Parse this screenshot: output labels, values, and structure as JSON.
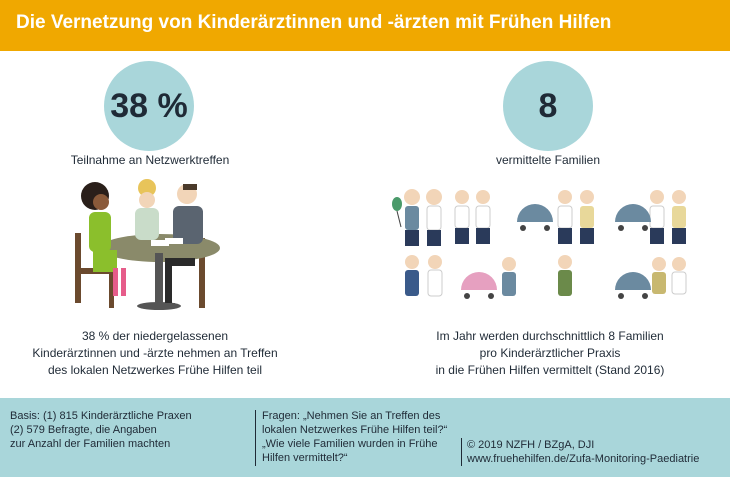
{
  "header": {
    "title": "Die Vernetzung von Kinderärztinnen und -ärzten mit Frühen Hilfen"
  },
  "left": {
    "stat": "38 %",
    "caption": "Teilnahme an Netzwerktreffen",
    "description": [
      "38 % der niedergelassenen",
      "Kinderärztinnen und -ärzte nehmen an Treffen",
      "des lokalen Netzwerkes Frühe Hilfen teil"
    ]
  },
  "right": {
    "stat": "8",
    "caption": "vermittelte Familien",
    "description": [
      "Im Jahr werden durchschnittlich 8 Familien",
      "pro Kinderärztlicher Praxis",
      "in die Frühen Hilfen vermittelt (Stand 2016)"
    ]
  },
  "footer": {
    "basis": [
      "Basis: (1) 815 Kinderärztliche Praxen",
      "(2) 579 Befragte, die Angaben",
      "zur Anzahl der Familien machten"
    ],
    "fragen": [
      "Fragen:  „Nehmen Sie an Treffen des",
      "lokalen Netzwerkes Frühe Hilfen teil?“",
      "„Wie viele Familien wurden in Frühe",
      "Hilfen vermittelt?“"
    ],
    "credit": [
      "© 2019 NZFH / BZgA, DJI",
      "www.fruehehilfen.de/Zufa-Monitoring-Paediatrie"
    ]
  },
  "colors": {
    "header": "#f0a800",
    "circle": "#a9d6da",
    "footer": "#a9d6da",
    "text": "#1f2a36"
  }
}
